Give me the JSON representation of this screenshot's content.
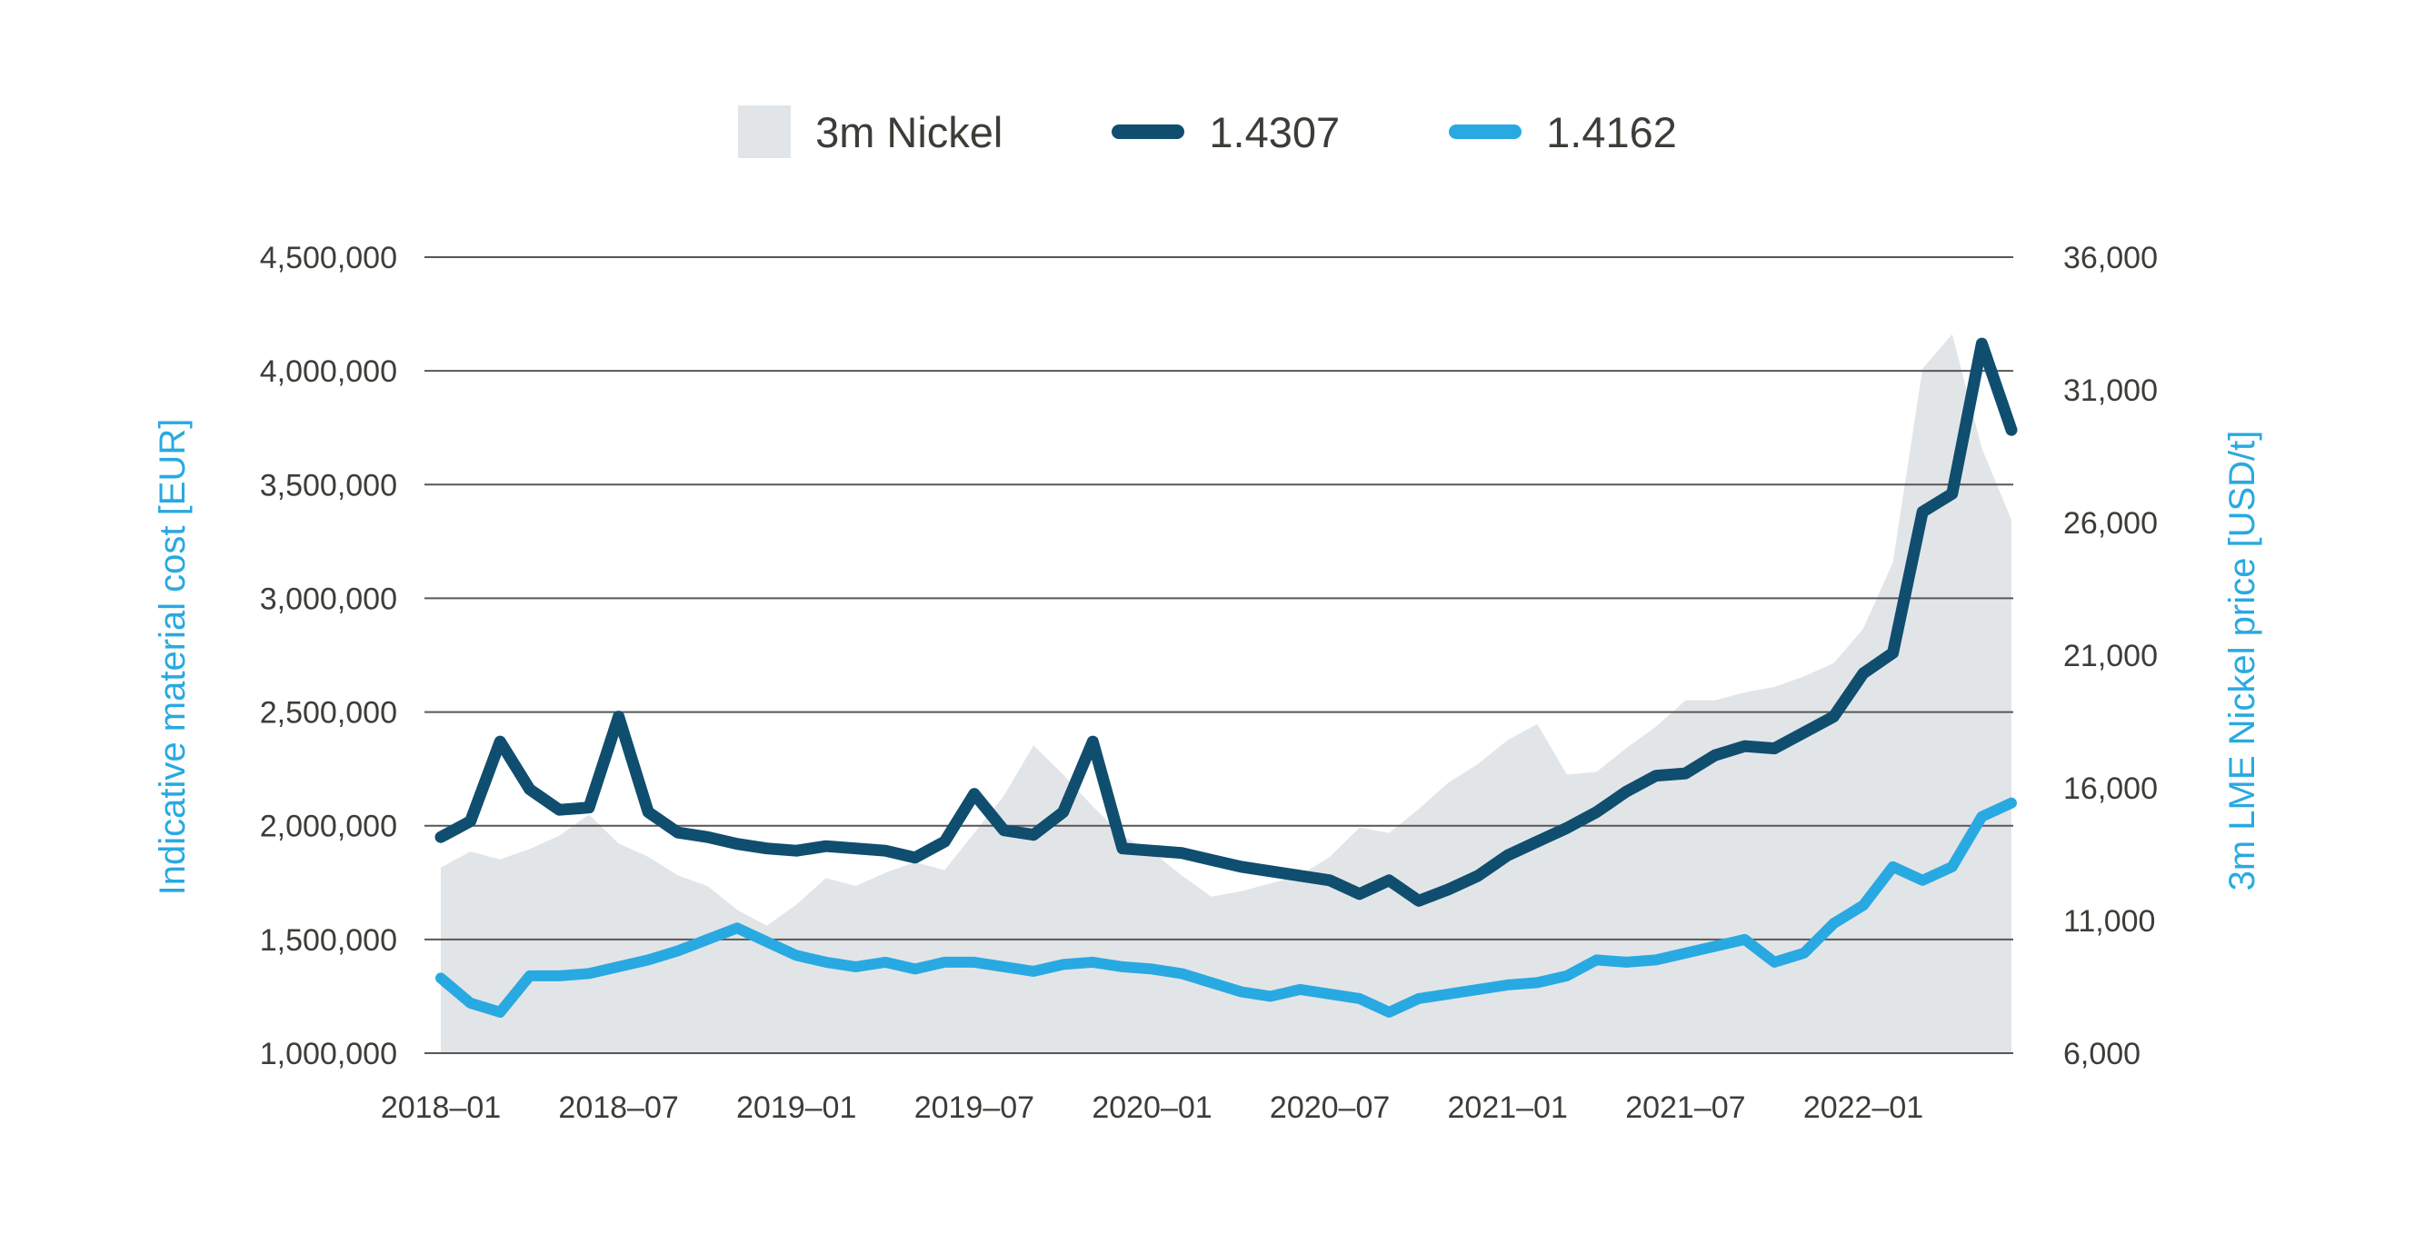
{
  "page": {
    "background": "#ffffff"
  },
  "colors": {
    "area_gray": "#e2e5e8",
    "dark_blue": "#0f4e6f",
    "light_blue": "#29a9e1",
    "grid": "#575756",
    "tick_text": "#3d3d38",
    "axis_title": "#29a9e1"
  },
  "chart_data": {
    "type": "area+line combo, monthly time series",
    "x": [
      "2018-01",
      "2018-02",
      "2018-03",
      "2018-04",
      "2018-05",
      "2018-06",
      "2018-07",
      "2018-08",
      "2018-09",
      "2018-10",
      "2018-11",
      "2018-12",
      "2019-01",
      "2019-02",
      "2019-03",
      "2019-04",
      "2019-05",
      "2019-06",
      "2019-07",
      "2019-08",
      "2019-09",
      "2019-10",
      "2019-11",
      "2019-12",
      "2020-01",
      "2020-02",
      "2020-03",
      "2020-04",
      "2020-05",
      "2020-06",
      "2020-07",
      "2020-08",
      "2020-09",
      "2020-10",
      "2020-11",
      "2020-12",
      "2021-01",
      "2021-02",
      "2021-03",
      "2021-04",
      "2021-05",
      "2021-06",
      "2021-07",
      "2021-08",
      "2021-09",
      "2021-10",
      "2021-11",
      "2021-12",
      "2022-01",
      "2022-02",
      "2022-03",
      "2022-04",
      "2022-05",
      "2022-06"
    ],
    "x_tick_labels": [
      "2018–01",
      "2018–07",
      "2019–01",
      "2019–07",
      "2020–01",
      "2020–07",
      "2021–01",
      "2021–07",
      "2022–01"
    ],
    "x_tick_every": 6,
    "grid": {
      "color": "#575756",
      "width": 2,
      "horizontal_only": true
    },
    "legend_position": "top-center",
    "left_axis": {
      "title": "Indicative material cost [EUR]",
      "min": 1000000,
      "max": 4500000,
      "tick_values": [
        4500000,
        4000000,
        3500000,
        3000000,
        2500000,
        2000000,
        1500000,
        1000000
      ],
      "tick_labels": [
        "4,500,000",
        "4,000,000",
        "3,500,000",
        "3,000,000",
        "2,500,000",
        "2,000,000",
        "1,500,000",
        "1,000,000"
      ],
      "title_color": "#29a9e1",
      "tick_text_color": "#3d3d38"
    },
    "right_axis": {
      "title": "3m LME Nickel price [USD/t]",
      "min": 6000,
      "max": 36000,
      "tick_values": [
        36000,
        31000,
        26000,
        21000,
        16000,
        11000,
        6000
      ],
      "tick_labels": [
        "36,000",
        "31,000",
        "26,000",
        "21,000",
        "16,000",
        "11,000",
        "6,000"
      ],
      "title_color": "#29a9e1",
      "tick_text_color": "#3d3d38"
    },
    "series": [
      {
        "name": "3m Nickel",
        "type": "area",
        "axis": "right",
        "color": "#e2e5e8",
        "values": [
          13000,
          13600,
          13300,
          13700,
          14200,
          15000,
          13900,
          13400,
          12700,
          12300,
          11400,
          10800,
          11600,
          12600,
          12300,
          12800,
          13200,
          12900,
          14300,
          15700,
          17600,
          16500,
          15300,
          14200,
          13600,
          12700,
          11900,
          12100,
          12400,
          12700,
          13400,
          14500,
          14300,
          15200,
          16200,
          16900,
          17800,
          18400,
          16500,
          16600,
          17500,
          18300,
          19300,
          19300,
          19600,
          19800,
          20200,
          20700,
          22000,
          24500,
          31800,
          33100,
          28800,
          26100
        ]
      },
      {
        "name": "1.4307",
        "type": "line",
        "axis": "left",
        "color": "#0f4e6f",
        "stroke_width": 13,
        "values": [
          1950000,
          2020000,
          2370000,
          2160000,
          2070000,
          2080000,
          2480000,
          2060000,
          1970000,
          1950000,
          1920000,
          1900000,
          1890000,
          1910000,
          1900000,
          1890000,
          1860000,
          1930000,
          2140000,
          1980000,
          1960000,
          2060000,
          2370000,
          1900000,
          1890000,
          1880000,
          1850000,
          1820000,
          1800000,
          1780000,
          1760000,
          1700000,
          1760000,
          1670000,
          1720000,
          1780000,
          1870000,
          1930000,
          1990000,
          2060000,
          2150000,
          2220000,
          2230000,
          2310000,
          2350000,
          2340000,
          2410000,
          2480000,
          2670000,
          2760000,
          3380000,
          3460000,
          4120000,
          3740000
        ]
      },
      {
        "name": "1.4162",
        "type": "line",
        "axis": "left",
        "color": "#29a9e1",
        "stroke_width": 12,
        "values": [
          1330000,
          1220000,
          1180000,
          1340000,
          1340000,
          1350000,
          1380000,
          1410000,
          1450000,
          1500000,
          1550000,
          1490000,
          1430000,
          1400000,
          1380000,
          1400000,
          1370000,
          1400000,
          1400000,
          1380000,
          1360000,
          1390000,
          1400000,
          1380000,
          1370000,
          1350000,
          1310000,
          1270000,
          1250000,
          1280000,
          1260000,
          1240000,
          1180000,
          1240000,
          1260000,
          1280000,
          1300000,
          1310000,
          1340000,
          1410000,
          1400000,
          1410000,
          1440000,
          1470000,
          1500000,
          1400000,
          1440000,
          1570000,
          1650000,
          1820000,
          1760000,
          1820000,
          2040000,
          2100000
        ]
      }
    ]
  }
}
